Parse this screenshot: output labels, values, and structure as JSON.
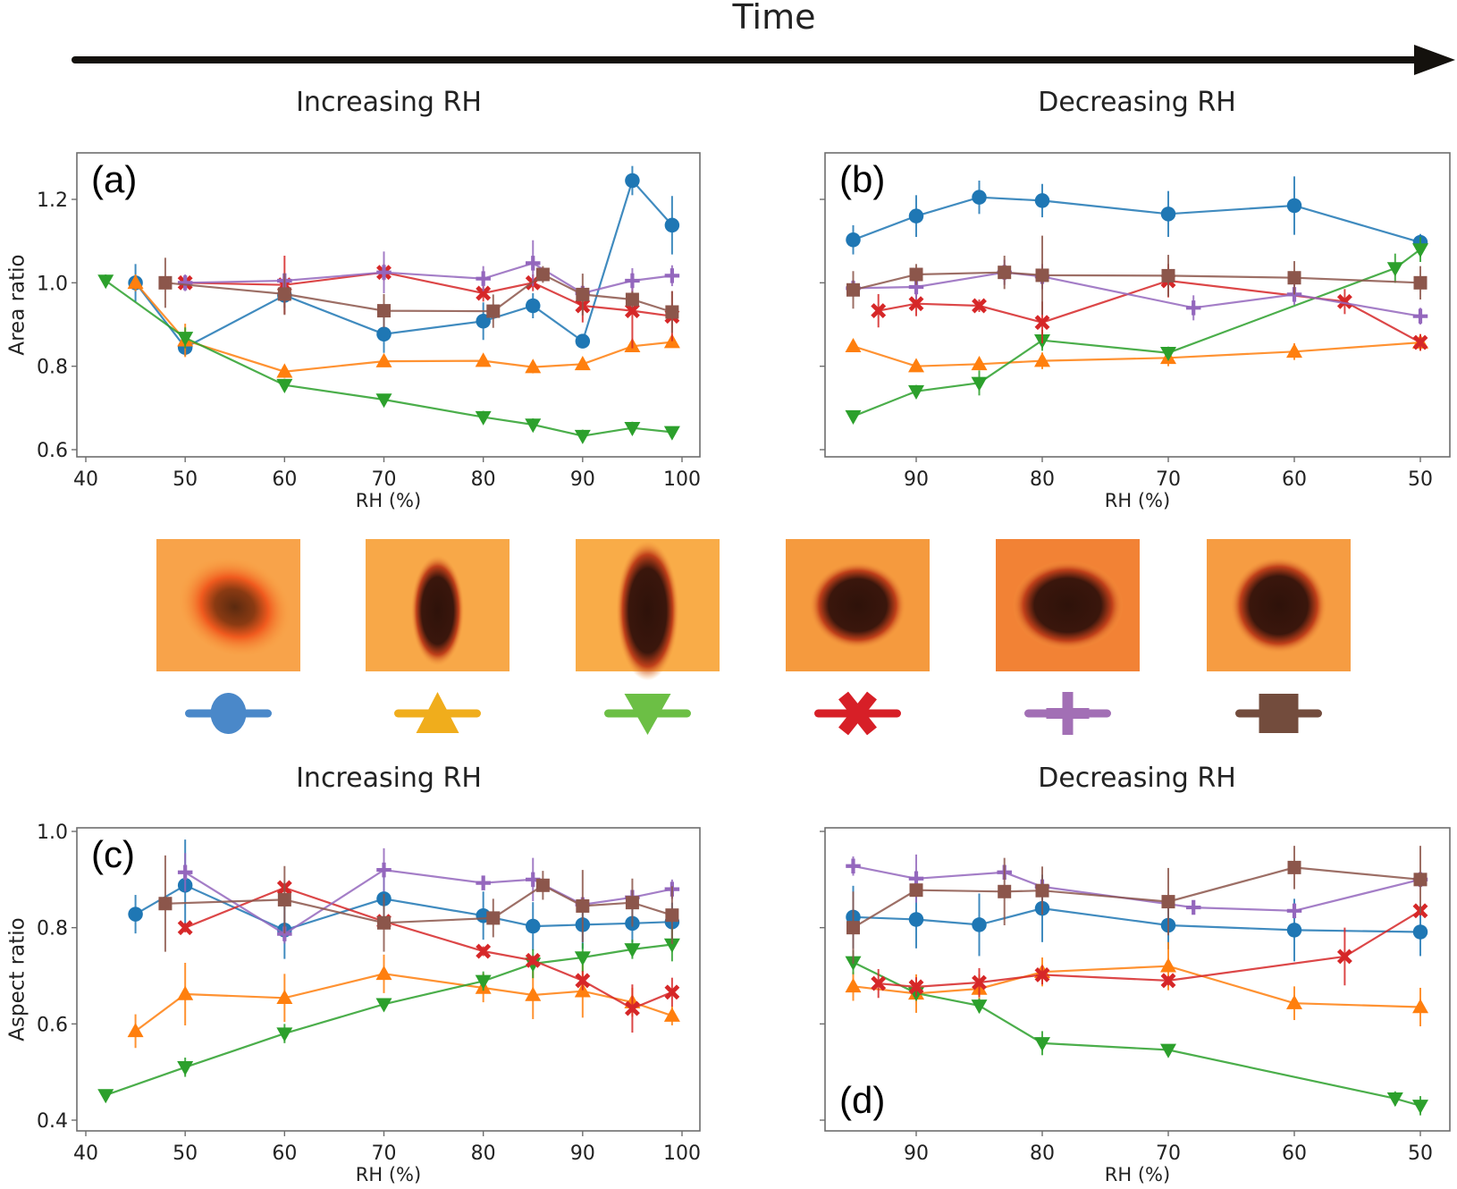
{
  "header": {
    "time_label": "Time",
    "increasing_label": "Increasing RH",
    "decreasing_label": "Decreasing RH"
  },
  "series_styles": [
    {
      "id": "s1",
      "color": "#1f77b4",
      "marker": "circle",
      "legend_color": "#4a88c9"
    },
    {
      "id": "s2",
      "color": "#ff7f0e",
      "marker": "triangle-up",
      "legend_color": "#f0ad1c"
    },
    {
      "id": "s3",
      "color": "#2ca02c",
      "marker": "triangle-down",
      "legend_color": "#6cbf45"
    },
    {
      "id": "s4",
      "color": "#d62728",
      "marker": "x",
      "legend_color": "#d71f27"
    },
    {
      "id": "s5",
      "color": "#9467bd",
      "marker": "plus",
      "legend_color": "#a26fb5"
    },
    {
      "id": "s6",
      "color": "#8c564b",
      "marker": "square",
      "legend_color": "#734c3d"
    }
  ],
  "legend_images": [
    {
      "series": "s1",
      "description": "droplet image 1 (diffuse dark spot)"
    },
    {
      "series": "s2",
      "description": "droplet image 2 (elongated dark spot)"
    },
    {
      "series": "s3",
      "description": "droplet image 3 (elongated dark spot)"
    },
    {
      "series": "s4",
      "description": "droplet image 4 (round dark spot)"
    },
    {
      "series": "s5",
      "description": "droplet image 5 (round dark spot)"
    },
    {
      "series": "s6",
      "description": "droplet image 6 (round dark spot)"
    }
  ],
  "chart_data": [
    {
      "id": "a",
      "type": "line",
      "panel_label": "(a)",
      "title": "Increasing RH",
      "xlabel": "RH (%)",
      "ylabel": "Area ratio",
      "xlim": [
        40,
        100
      ],
      "x_reversed": false,
      "ylim": [
        0.6,
        1.2
      ],
      "xticks": [
        40,
        50,
        60,
        70,
        80,
        90,
        100
      ],
      "yticks": [
        0.6,
        0.8,
        1.0,
        1.2
      ],
      "ytick_labels": [
        "0.6",
        "0.8",
        "1.0",
        "1.2"
      ],
      "grid": false,
      "series": [
        {
          "id": "s1",
          "x": [
            45,
            50,
            60,
            70,
            80,
            85,
            90,
            95,
            99
          ],
          "y": [
            1.0,
            0.845,
            0.97,
            0.877,
            0.908,
            0.945,
            0.86,
            1.245,
            1.138
          ],
          "err": [
            0.045,
            0.02,
            0.03,
            0.045,
            0.045,
            0.03,
            0.015,
            0.035,
            0.07
          ]
        },
        {
          "id": "s2",
          "x": [
            45,
            50,
            60,
            70,
            80,
            85,
            90,
            95,
            99
          ],
          "y": [
            1.0,
            0.862,
            0.787,
            0.812,
            0.813,
            0.798,
            0.805,
            0.848,
            0.858
          ],
          "err": [
            0.02,
            0.04,
            0.015,
            0.01,
            0.01,
            0.015,
            0.01,
            0.01,
            0.01
          ]
        },
        {
          "id": "s3",
          "x": [
            42,
            50,
            60,
            70,
            80,
            85,
            90,
            95,
            99
          ],
          "y": [
            1.005,
            0.868,
            0.755,
            0.72,
            0.678,
            0.66,
            0.633,
            0.652,
            0.642
          ],
          "err": [
            0.015,
            0.025,
            0.015,
            0.01,
            0.015,
            0.015,
            0.015,
            0.015,
            0.01
          ]
        },
        {
          "id": "s4",
          "x": [
            50,
            60,
            70,
            80,
            85,
            90,
            95,
            99
          ],
          "y": [
            1.0,
            0.995,
            1.025,
            0.975,
            1.0,
            0.945,
            0.933,
            0.92
          ],
          "err": [
            0.01,
            0.07,
            0.02,
            0.02,
            0.02,
            0.04,
            0.09,
            0.06
          ]
        },
        {
          "id": "s5",
          "x": [
            50,
            60,
            70,
            80,
            85,
            90,
            95,
            99
          ],
          "y": [
            1.0,
            1.005,
            1.025,
            1.01,
            1.047,
            0.975,
            1.005,
            1.017
          ],
          "err": [
            0.02,
            0.015,
            0.05,
            0.03,
            0.055,
            0.015,
            0.03,
            0.025
          ]
        },
        {
          "id": "s6",
          "x": [
            48,
            60,
            70,
            81,
            86,
            90,
            95,
            99
          ],
          "y": [
            1.0,
            0.973,
            0.933,
            0.932,
            1.02,
            0.972,
            0.96,
            0.93
          ],
          "err": [
            0.06,
            0.05,
            0.04,
            0.04,
            0.02,
            0.05,
            0.02,
            0.05
          ]
        }
      ]
    },
    {
      "id": "b",
      "type": "line",
      "panel_label": "(b)",
      "title": "Decreasing RH",
      "xlabel": "RH (%)",
      "ylabel": "",
      "xlim": [
        97,
        48
      ],
      "x_reversed": true,
      "ylim": [
        0.6,
        1.2
      ],
      "xticks": [
        90,
        80,
        70,
        60,
        50
      ],
      "yticks": [
        0.6,
        0.8,
        1.0,
        1.2
      ],
      "ytick_labels": [
        "",
        "",
        "",
        ""
      ],
      "grid": false,
      "series": [
        {
          "id": "s1",
          "x": [
            95,
            90,
            85,
            80,
            70,
            60,
            50
          ],
          "y": [
            1.103,
            1.16,
            1.205,
            1.197,
            1.165,
            1.185,
            1.097
          ],
          "err": [
            0.035,
            0.05,
            0.04,
            0.04,
            0.055,
            0.07,
            0.02
          ]
        },
        {
          "id": "s2",
          "x": [
            95,
            90,
            85,
            80,
            70,
            60,
            50
          ],
          "y": [
            0.848,
            0.8,
            0.805,
            0.813,
            0.82,
            0.835,
            0.857
          ],
          "err": [
            0.01,
            0.01,
            0.01,
            0.02,
            0.02,
            0.02,
            0.02
          ]
        },
        {
          "id": "s3",
          "x": [
            95,
            90,
            85,
            80,
            70,
            52,
            50
          ],
          "y": [
            0.68,
            0.74,
            0.76,
            0.862,
            0.832,
            1.035,
            1.08
          ],
          "err": [
            0.01,
            0.015,
            0.03,
            0.025,
            0.015,
            0.035,
            0.03
          ]
        },
        {
          "id": "s4",
          "x": [
            93,
            90,
            85,
            80,
            70,
            56,
            50
          ],
          "y": [
            0.933,
            0.95,
            0.945,
            0.905,
            1.005,
            0.955,
            0.857
          ],
          "err": [
            0.04,
            0.03,
            0.015,
            0.05,
            0.04,
            0.03,
            0.02
          ]
        },
        {
          "id": "s5",
          "x": [
            95,
            90,
            83,
            80,
            68,
            60,
            50
          ],
          "y": [
            0.987,
            0.99,
            1.025,
            1.015,
            0.94,
            0.972,
            0.92
          ],
          "err": [
            0.02,
            0.03,
            0.03,
            0.03,
            0.03,
            0.025,
            0.02
          ]
        },
        {
          "id": "s6",
          "x": [
            95,
            90,
            83,
            80,
            70,
            60,
            50
          ],
          "y": [
            0.983,
            1.02,
            1.025,
            1.018,
            1.017,
            1.012,
            1.0
          ],
          "err": [
            0.045,
            0.025,
            0.04,
            0.095,
            0.05,
            0.04,
            0.04
          ]
        }
      ]
    },
    {
      "id": "c",
      "type": "line",
      "panel_label": "(c)",
      "title": "Increasing RH",
      "xlabel": "RH (%)",
      "ylabel": "Aspect ratio",
      "xlim": [
        40,
        100
      ],
      "x_reversed": false,
      "ylim": [
        0.4,
        1.0
      ],
      "xticks": [
        40,
        50,
        60,
        70,
        80,
        90,
        100
      ],
      "yticks": [
        0.4,
        0.6,
        0.8,
        1.0
      ],
      "ytick_labels": [
        "0.4",
        "0.6",
        "0.8",
        "1.0"
      ],
      "grid": false,
      "series": [
        {
          "id": "s1",
          "x": [
            45,
            50,
            60,
            70,
            80,
            85,
            90,
            95,
            99
          ],
          "y": [
            0.828,
            0.888,
            0.795,
            0.86,
            0.825,
            0.803,
            0.806,
            0.809,
            0.812
          ],
          "err": [
            0.04,
            0.095,
            0.06,
            0.05,
            0.05,
            0.05,
            0.05,
            0.04,
            0.04
          ]
        },
        {
          "id": "s2",
          "x": [
            45,
            50,
            60,
            70,
            80,
            85,
            90,
            95,
            99
          ],
          "y": [
            0.585,
            0.662,
            0.654,
            0.704,
            0.675,
            0.66,
            0.668,
            0.645,
            0.617
          ],
          "err": [
            0.035,
            0.065,
            0.05,
            0.04,
            0.03,
            0.05,
            0.055,
            0.03,
            0.02
          ]
        },
        {
          "id": "s3",
          "x": [
            42,
            50,
            60,
            70,
            80,
            85,
            90,
            95,
            99
          ],
          "y": [
            0.452,
            0.51,
            0.58,
            0.641,
            0.689,
            0.725,
            0.738,
            0.755,
            0.765
          ],
          "err": [
            0.01,
            0.02,
            0.02,
            0.01,
            0.02,
            0.03,
            0.03,
            0.02,
            0.035
          ]
        },
        {
          "id": "s4",
          "x": [
            50,
            60,
            70,
            80,
            85,
            90,
            95,
            99
          ],
          "y": [
            0.8,
            0.883,
            0.813,
            0.751,
            0.732,
            0.69,
            0.632,
            0.666
          ],
          "err": [
            0.01,
            0.01,
            0.01,
            0.01,
            0.01,
            0.02,
            0.05,
            0.03
          ]
        },
        {
          "id": "s5",
          "x": [
            50,
            60,
            70,
            80,
            85,
            90,
            95,
            99
          ],
          "y": [
            0.915,
            0.787,
            0.92,
            0.893,
            0.9,
            0.848,
            0.863,
            0.88
          ],
          "err": [
            0.04,
            0.02,
            0.045,
            0.01,
            0.045,
            0.01,
            0.01,
            0.02
          ]
        },
        {
          "id": "s6",
          "x": [
            48,
            60,
            70,
            81,
            86,
            90,
            95,
            99
          ],
          "y": [
            0.85,
            0.858,
            0.81,
            0.82,
            0.888,
            0.845,
            0.852,
            0.826
          ],
          "err": [
            0.1,
            0.07,
            0.06,
            0.04,
            0.03,
            0.075,
            0.05,
            0.06
          ]
        }
      ]
    },
    {
      "id": "d",
      "type": "line",
      "panel_label": "(d)",
      "title": "Decreasing RH",
      "xlabel": "RH (%)",
      "ylabel": "",
      "xlim": [
        97,
        48
      ],
      "x_reversed": true,
      "ylim": [
        0.4,
        1.0
      ],
      "xticks": [
        90,
        80,
        70,
        60,
        50
      ],
      "yticks": [
        0.4,
        0.6,
        0.8,
        1.0
      ],
      "ytick_labels": [
        "",
        "",
        "",
        ""
      ],
      "grid": false,
      "series": [
        {
          "id": "s1",
          "x": [
            95,
            90,
            85,
            80,
            70,
            60,
            50
          ],
          "y": [
            0.822,
            0.817,
            0.806,
            0.84,
            0.805,
            0.795,
            0.791
          ],
          "err": [
            0.065,
            0.06,
            0.065,
            0.07,
            0.05,
            0.065,
            0.05
          ]
        },
        {
          "id": "s2",
          "x": [
            95,
            90,
            85,
            80,
            70,
            60,
            50
          ],
          "y": [
            0.678,
            0.663,
            0.673,
            0.708,
            0.72,
            0.643,
            0.635
          ],
          "err": [
            0.03,
            0.04,
            0.03,
            0.03,
            0.05,
            0.035,
            0.04
          ]
        },
        {
          "id": "s3",
          "x": [
            95,
            90,
            85,
            80,
            70,
            52,
            50
          ],
          "y": [
            0.728,
            0.664,
            0.638,
            0.56,
            0.546,
            0.445,
            0.43
          ],
          "err": [
            0.025,
            0.01,
            0.015,
            0.025,
            0.01,
            0.015,
            0.02
          ]
        },
        {
          "id": "s4",
          "x": [
            93,
            90,
            85,
            80,
            70,
            56,
            50
          ],
          "y": [
            0.684,
            0.677,
            0.686,
            0.702,
            0.69,
            0.74,
            0.835
          ],
          "err": [
            0.03,
            0.02,
            0.03,
            0.02,
            0.01,
            0.06,
            0.01
          ]
        },
        {
          "id": "s5",
          "x": [
            95,
            90,
            83,
            80,
            68,
            60,
            50
          ],
          "y": [
            0.928,
            0.902,
            0.915,
            0.885,
            0.842,
            0.835,
            0.9
          ],
          "err": [
            0.02,
            0.05,
            0.01,
            0.01,
            0.01,
            0.01,
            0.01
          ]
        },
        {
          "id": "s6",
          "x": [
            95,
            90,
            83,
            80,
            70,
            60,
            50
          ],
          "y": [
            0.8,
            0.878,
            0.875,
            0.877,
            0.854,
            0.925,
            0.9
          ],
          "err": [
            0.075,
            0.01,
            0.07,
            0.05,
            0.07,
            0.045,
            0.07
          ]
        }
      ]
    }
  ]
}
